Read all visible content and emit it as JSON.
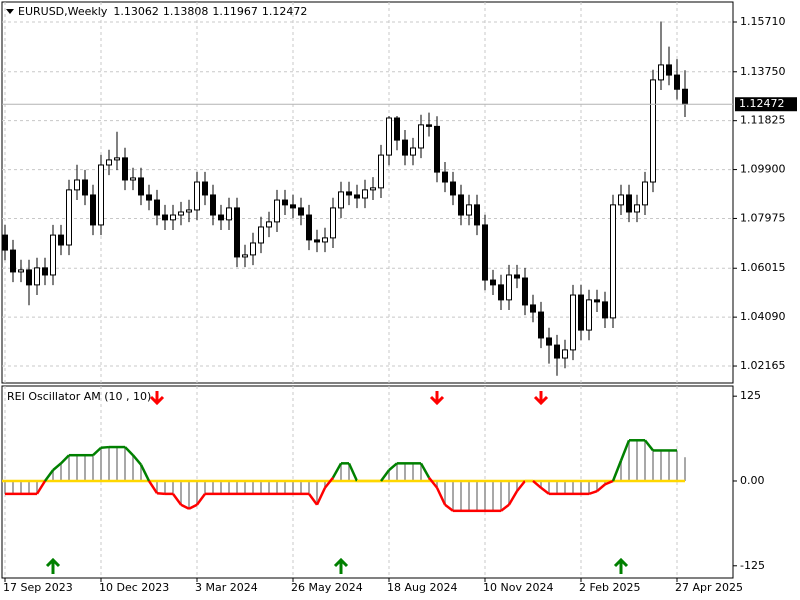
{
  "chart_data": [
    {
      "type": "candlestick",
      "title": "EURUSD,Weekly",
      "categories": [
        "17 Sep 2023",
        null,
        null,
        null,
        null,
        null,
        null,
        null,
        null,
        null,
        null,
        null,
        "10 Dec 2023",
        null,
        null,
        null,
        null,
        null,
        null,
        null,
        null,
        null,
        null,
        null,
        "3 Mar 2024",
        null,
        null,
        null,
        null,
        null,
        null,
        null,
        null,
        null,
        null,
        null,
        "26 May 2024",
        null,
        null,
        null,
        null,
        null,
        null,
        null,
        null,
        null,
        null,
        null,
        "18 Aug 2024",
        null,
        null,
        null,
        null,
        null,
        null,
        null,
        null,
        null,
        null,
        null,
        "10 Nov 2024",
        null,
        null,
        null,
        null,
        null,
        null,
        null,
        null,
        null,
        null,
        null,
        "2 Feb 2025",
        null,
        null,
        null,
        null,
        null,
        null,
        null,
        null,
        null,
        null,
        null,
        "27 Apr 2025",
        null
      ],
      "open": [
        1.0732,
        1.0673,
        1.0587,
        1.0595,
        1.0536,
        1.0603,
        1.0575,
        1.0732,
        1.0693,
        1.091,
        1.0949,
        1.089,
        1.0772,
        1.1008,
        1.1028,
        1.1036,
        1.0949,
        1.0957,
        1.089,
        1.087,
        1.0811,
        1.0792,
        1.0811,
        1.0823,
        1.0831,
        1.0941,
        1.089,
        1.0811,
        1.0792,
        1.0839,
        1.0646,
        1.0654,
        1.0701,
        1.0764,
        1.0784,
        1.087,
        1.0851,
        1.0839,
        1.0811,
        1.0713,
        1.0705,
        1.0721,
        1.0839,
        1.0902,
        1.089,
        1.0878,
        1.091,
        1.0918,
        1.1047,
        1.1193,
        1.1106,
        1.1047,
        1.1075,
        1.1166,
        1.116,
        1.098,
        1.0941,
        1.089,
        1.0811,
        1.0851,
        1.0772,
        1.0555,
        1.0536,
        1.0477,
        1.0575,
        1.0563,
        1.0457,
        1.0429,
        1.0327,
        1.0299,
        1.0248,
        1.028,
        1.0496,
        1.0358,
        1.0477,
        1.0469,
        1.0406,
        1.0851,
        1.089,
        1.0823,
        1.0851,
        1.0941,
        1.1343,
        1.1402,
        1.1362,
        1.13062
      ],
      "high": [
        1.0772,
        1.0713,
        1.0635,
        1.0635,
        1.0643,
        1.0643,
        1.0772,
        1.0772,
        1.095,
        1.1009,
        1.0989,
        1.093,
        1.1048,
        1.1068,
        1.1139,
        1.1076,
        1.0997,
        1.0997,
        1.093,
        1.091,
        1.0851,
        1.0851,
        1.0863,
        1.0871,
        1.0981,
        1.0981,
        1.093,
        1.0851,
        1.0879,
        1.0879,
        1.0694,
        1.0741,
        1.0804,
        1.0824,
        1.091,
        1.091,
        1.0891,
        1.0879,
        1.0851,
        1.0753,
        1.0761,
        1.0879,
        1.0942,
        1.0942,
        1.093,
        1.095,
        1.096,
        1.1087,
        1.1201,
        1.1201,
        1.1146,
        1.1115,
        1.1206,
        1.1214,
        1.12,
        1.102,
        1.0981,
        1.093,
        1.0891,
        1.0891,
        1.0812,
        1.0595,
        1.0576,
        1.0615,
        1.0615,
        1.0603,
        1.0497,
        1.0469,
        1.0367,
        1.0339,
        1.032,
        1.0536,
        1.0536,
        1.0517,
        1.0517,
        1.0509,
        1.0891,
        1.093,
        1.093,
        1.0891,
        1.0981,
        1.1383,
        1.1573,
        1.1474,
        1.1425,
        1.13808
      ],
      "low": [
        1.0633,
        1.0547,
        1.0547,
        1.0456,
        1.0496,
        1.0535,
        1.0535,
        1.0653,
        1.0653,
        1.087,
        1.085,
        1.0732,
        1.0732,
        1.0968,
        1.0988,
        1.0909,
        1.0909,
        1.085,
        1.083,
        1.0771,
        1.0752,
        1.0752,
        1.0771,
        1.0783,
        1.0791,
        1.085,
        1.0771,
        1.0752,
        1.0752,
        1.0606,
        1.0606,
        1.0614,
        1.0661,
        1.0724,
        1.0744,
        1.0811,
        1.0799,
        1.0771,
        1.0673,
        1.0665,
        1.0665,
        1.0681,
        1.0799,
        1.085,
        1.0838,
        1.0838,
        1.087,
        1.0878,
        1.1007,
        1.1066,
        1.1007,
        1.1007,
        1.1035,
        1.112,
        1.094,
        1.0901,
        1.085,
        1.0771,
        1.0771,
        1.0732,
        1.0515,
        1.0496,
        1.0437,
        1.0437,
        1.0523,
        1.0417,
        1.0389,
        1.0287,
        1.0226,
        1.0178,
        1.0208,
        1.024,
        1.0318,
        1.0318,
        1.0429,
        1.0366,
        1.0366,
        1.0811,
        1.0783,
        1.0783,
        1.0811,
        1.0901,
        1.1303,
        1.1322,
        1.1266,
        1.11967
      ],
      "close": [
        1.0673,
        1.0587,
        1.0595,
        1.0536,
        1.0603,
        1.0575,
        1.0732,
        1.0693,
        1.091,
        1.0949,
        1.089,
        1.0772,
        1.1008,
        1.1028,
        1.1036,
        1.0949,
        1.0957,
        1.089,
        1.087,
        1.0811,
        1.0792,
        1.0811,
        1.0823,
        1.0831,
        1.0941,
        1.089,
        1.0811,
        1.0792,
        1.0839,
        1.0646,
        1.0654,
        1.0701,
        1.0764,
        1.0784,
        1.087,
        1.0851,
        1.0839,
        1.0811,
        1.0713,
        1.0705,
        1.0721,
        1.0839,
        1.0902,
        1.089,
        1.0878,
        1.091,
        1.0918,
        1.1047,
        1.1193,
        1.1106,
        1.1047,
        1.1075,
        1.1166,
        1.116,
        1.098,
        1.0941,
        1.089,
        1.0811,
        1.0851,
        1.0772,
        1.0555,
        1.0536,
        1.0477,
        1.0575,
        1.0563,
        1.0457,
        1.0429,
        1.0327,
        1.0299,
        1.0248,
        1.028,
        1.0496,
        1.0358,
        1.0477,
        1.0469,
        1.0406,
        1.0851,
        1.089,
        1.0823,
        1.0851,
        1.0941,
        1.1343,
        1.1402,
        1.1362,
        1.13062,
        1.12472
      ],
      "ylim": [
        1.01497,
        1.16497
      ],
      "yticks": [
        {
          "value": 1.1571,
          "label": "1.15710"
        },
        {
          "value": 1.1375,
          "label": "1.13750"
        },
        1.11825,
        {
          "value": 1.099,
          "label": "1.09900"
        },
        1.07975,
        1.06015,
        {
          "value": 1.0409,
          "label": "1.04090"
        },
        1.02165
      ],
      "grid": true,
      "bull_color": "#ffffff",
      "bear_color": "#000000",
      "wick_color": "#000000",
      "last_price_line": true
    },
    {
      "type": "oscillator",
      "title": "REI Oscillator AM (10 , 10)",
      "values": [
        -19,
        -19,
        -19,
        -19,
        -19,
        0,
        16,
        26,
        38,
        38,
        38,
        38,
        49,
        50,
        50,
        50,
        38,
        24,
        0,
        -18,
        -19,
        -19,
        -35,
        -41,
        -35,
        -19,
        -19,
        -19,
        -19,
        -19,
        -19,
        -19,
        -19,
        -19,
        -19,
        -19,
        -19,
        -19,
        -19,
        -35,
        -10,
        5,
        26,
        26,
        0,
        0,
        0,
        0,
        16,
        26,
        26,
        26,
        26,
        5,
        -10,
        -35,
        -44,
        -44,
        -44,
        -44,
        -44,
        -44,
        -44,
        -35,
        -15,
        0,
        0,
        -10,
        -19,
        -19,
        -19,
        -19,
        -19,
        -19,
        -15,
        -5,
        0,
        30,
        60,
        60,
        60,
        45,
        45,
        45,
        45,
        35
      ],
      "ylim": [
        -143,
        140
      ],
      "yticks": [
        125,
        {
          "value": 0,
          "label": "0.00"
        },
        -125
      ],
      "up_color": "#008000",
      "down_color": "#ff0000",
      "zero_color": "#ffd700",
      "histogram_color": "#a8a8a8",
      "buy_signals": [
        6,
        42,
        77
      ],
      "sell_signals": [
        19,
        54,
        67
      ]
    }
  ]
}
